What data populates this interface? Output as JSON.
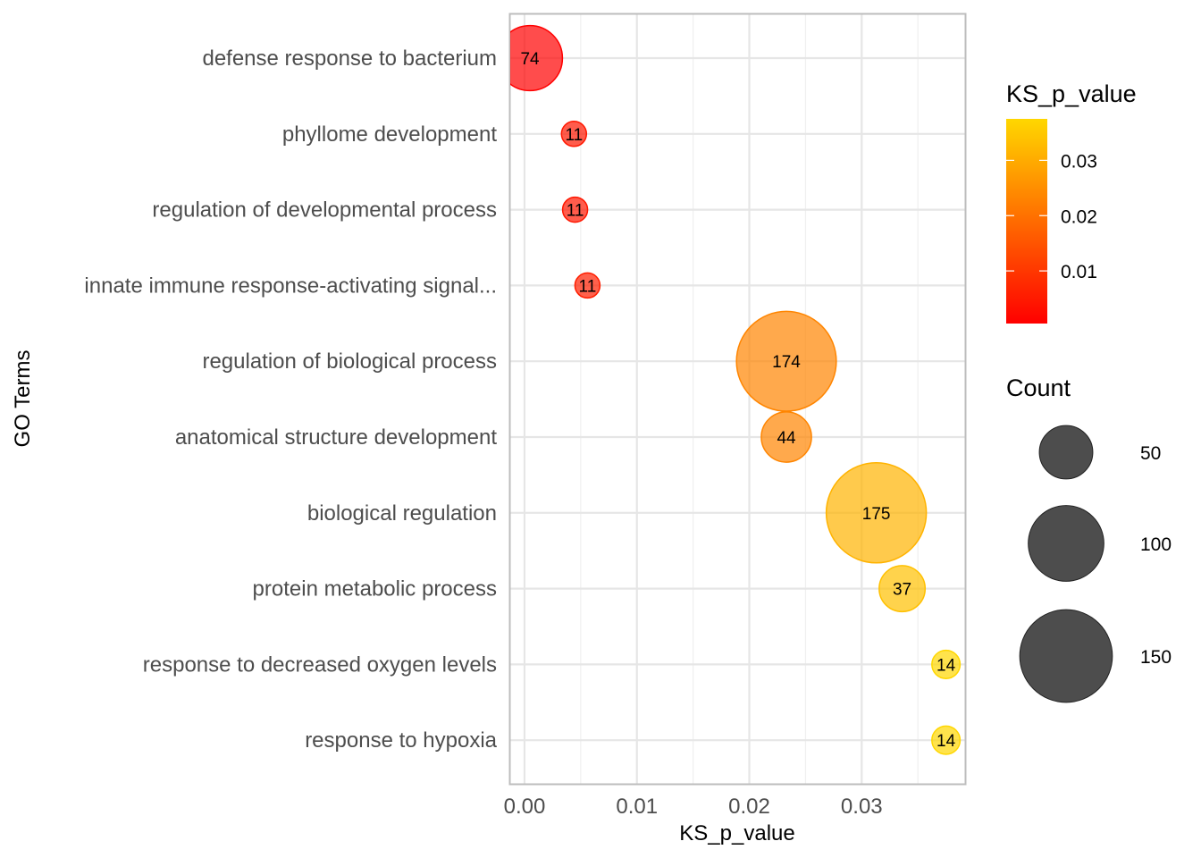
{
  "chart_data": {
    "type": "scatter",
    "subtype": "bubble",
    "title": "",
    "xlabel": "KS_p_value",
    "ylabel": "GO Terms",
    "xlim": [
      -0.00127,
      0.0392
    ],
    "x_ticks": [
      0.0,
      0.01,
      0.02,
      0.03
    ],
    "x_tick_labels": [
      "0.00",
      "0.01",
      "0.02",
      "0.03"
    ],
    "grid": true,
    "categories": [
      "defense response to bacterium",
      "phyllome development",
      "regulation of developmental process",
      "innate immune response-activating signal...",
      "regulation of biological process",
      "anatomical structure development",
      "biological regulation",
      "protein metabolic process",
      "response to decreased oxygen levels",
      "response to hypoxia"
    ],
    "points": [
      {
        "term": "defense response to bacterium",
        "ks_p_value": 0.00048,
        "count": 74
      },
      {
        "term": "phyllome development",
        "ks_p_value": 0.0044,
        "count": 11
      },
      {
        "term": "regulation of developmental process",
        "ks_p_value": 0.0045,
        "count": 11
      },
      {
        "term": "innate immune response-activating signal...",
        "ks_p_value": 0.0056,
        "count": 11
      },
      {
        "term": "regulation of biological process",
        "ks_p_value": 0.0233,
        "count": 174
      },
      {
        "term": "anatomical structure development",
        "ks_p_value": 0.0233,
        "count": 44
      },
      {
        "term": "biological regulation",
        "ks_p_value": 0.0313,
        "count": 175
      },
      {
        "term": "protein metabolic process",
        "ks_p_value": 0.0336,
        "count": 37
      },
      {
        "term": "response to decreased oxygen levels",
        "ks_p_value": 0.0375,
        "count": 14
      },
      {
        "term": "response to hypoxia",
        "ks_p_value": 0.0375,
        "count": 14
      }
    ],
    "color_scale": {
      "title": "KS_p_value",
      "low_color": "#FF0000",
      "high_color": "#FFD700",
      "range": [
        0.00048,
        0.0375
      ],
      "ticks": [
        0.01,
        0.02,
        0.03
      ],
      "tick_labels": [
        "0.01",
        "0.02",
        "0.03"
      ],
      "legend_placement": "right"
    },
    "size_scale": {
      "title": "Count",
      "breaks": [
        50,
        100,
        150
      ],
      "break_labels": [
        "50",
        "100",
        "150"
      ],
      "legend_placement": "right",
      "legend_color": "#4d4d4d"
    },
    "point_alpha": 0.7
  }
}
